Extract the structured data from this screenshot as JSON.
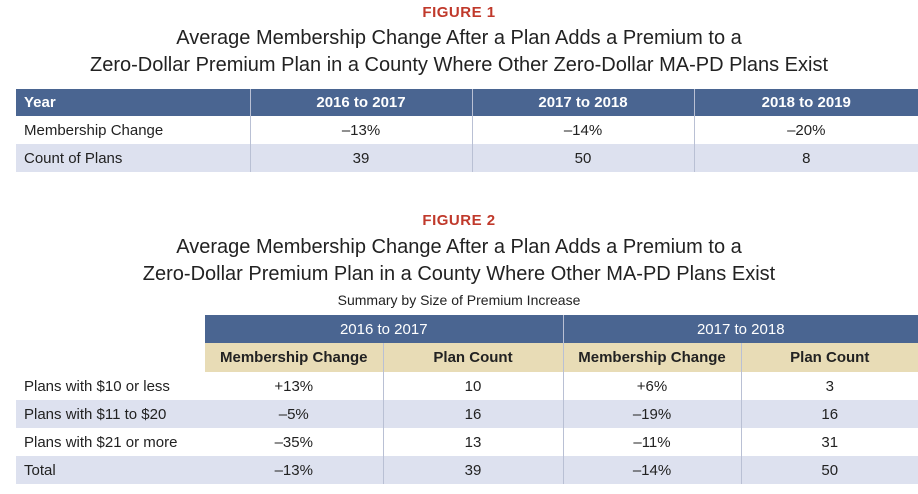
{
  "figure1": {
    "label": "FIGURE 1",
    "title_line1": "Average Membership Change After a Plan Adds a Premium to a",
    "title_line2": "Zero-Dollar Premium Plan in a County Where Other Zero-Dollar MA-PD Plans Exist",
    "headers": [
      "Year",
      "2016 to 2017",
      "2017 to 2018",
      "2018 to 2019"
    ],
    "rows": [
      [
        "Membership Change",
        "–13%",
        "–14%",
        "–20%"
      ],
      [
        "Count of Plans",
        "39",
        "50",
        "8"
      ]
    ]
  },
  "figure2": {
    "label": "FIGURE 2",
    "title_line1": "Average Membership Change After a Plan Adds a Premium to a",
    "title_line2": "Zero-Dollar Premium Plan in a County Where Other MA-PD Plans Exist",
    "subtitle": "Summary by Size of Premium Increase",
    "groups": [
      "2016 to 2017",
      "2017 to 2018"
    ],
    "subheaders": [
      "Membership Change",
      "Plan Count",
      "Membership Change",
      "Plan Count"
    ],
    "rows": [
      [
        "Plans with $10 or less",
        "+13%",
        "10",
        "+6%",
        "3"
      ],
      [
        "Plans with $11 to $20",
        "–5%",
        "16",
        "–19%",
        "16"
      ],
      [
        "Plans with $21 or more",
        "–35%",
        "13",
        "–11%",
        "31"
      ],
      [
        "Total",
        "–13%",
        "39",
        "–14%",
        "50"
      ]
    ]
  }
}
